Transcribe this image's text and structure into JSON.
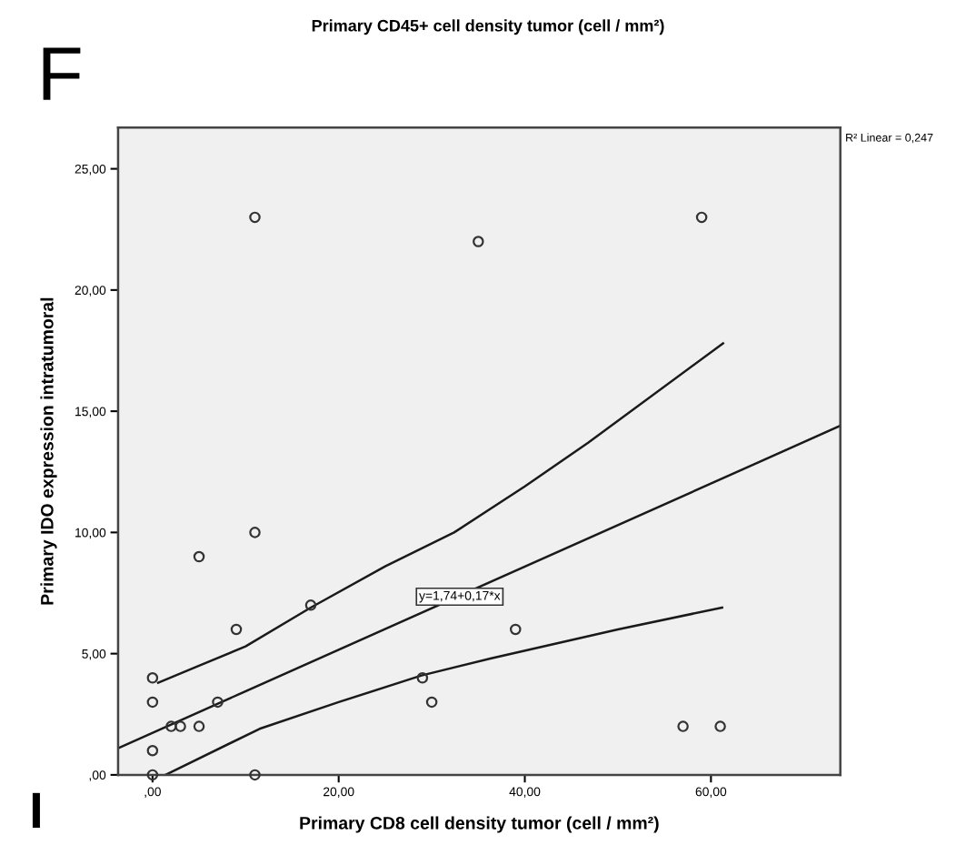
{
  "chart_data": {
    "type": "scatter",
    "title": "Primary CD45+ cell density tumor (cell / mm²)",
    "xlabel": "Primary CD8 cell density tumor (cell / mm²)",
    "ylabel": "Primary IDO expression intratumoral",
    "xlim": [
      -3.7,
      73.9
    ],
    "ylim": [
      0,
      26.7
    ],
    "xticks": [
      {
        "value": 0,
        "label": ",00"
      },
      {
        "value": 20,
        "label": "20,00"
      },
      {
        "value": 40,
        "label": "40,00"
      },
      {
        "value": 60,
        "label": "60,00"
      }
    ],
    "yticks": [
      {
        "value": 0,
        "label": ",00"
      },
      {
        "value": 5,
        "label": "5,00"
      },
      {
        "value": 10,
        "label": "10,00"
      },
      {
        "value": 15,
        "label": "15,00"
      },
      {
        "value": 20,
        "label": "20,00"
      },
      {
        "value": 25,
        "label": "25,00"
      }
    ],
    "grid": false,
    "marker": "circle",
    "series": [
      {
        "color": "#333333",
        "x": [
          0,
          0,
          2,
          3,
          5,
          0,
          0,
          5,
          7,
          9,
          11,
          11,
          11,
          17,
          29,
          30,
          35,
          39,
          57,
          59,
          61
        ],
        "values": [
          4,
          3,
          2,
          2,
          2,
          1,
          0,
          9,
          3,
          6,
          10,
          23,
          0,
          7,
          4,
          3,
          22,
          6,
          2,
          23,
          2
        ]
      },
      {
        "type": "line",
        "color": "#1a1a1a",
        "marker": "none",
        "x": [
          -3.7,
          73.9
        ],
        "values": [
          1.1,
          14.4
        ]
      },
      {
        "type": "line",
        "color": "#1a1a1a",
        "marker": "none",
        "x": [
          0.6,
          5,
          10,
          17,
          25,
          32.4,
          40,
          46.8,
          61.3
        ],
        "values": [
          3.8,
          4.5,
          5.3,
          6.9,
          8.6,
          10.0,
          11.9,
          13.7,
          17.8
        ]
      },
      {
        "type": "line",
        "color": "#1a1a1a",
        "marker": "none",
        "x": [
          1.4,
          11.5,
          20,
          28.9,
          36.3,
          50,
          61.2
        ],
        "values": [
          0,
          1.9,
          3.0,
          4.1,
          4.8,
          6.0,
          6.9
        ]
      }
    ],
    "annotations": [
      {
        "text": "y=1,74+0,17*x",
        "x": 33,
        "y": 7.35
      },
      "R² Linear = 0,247",
      "F",
      "I"
    ]
  }
}
